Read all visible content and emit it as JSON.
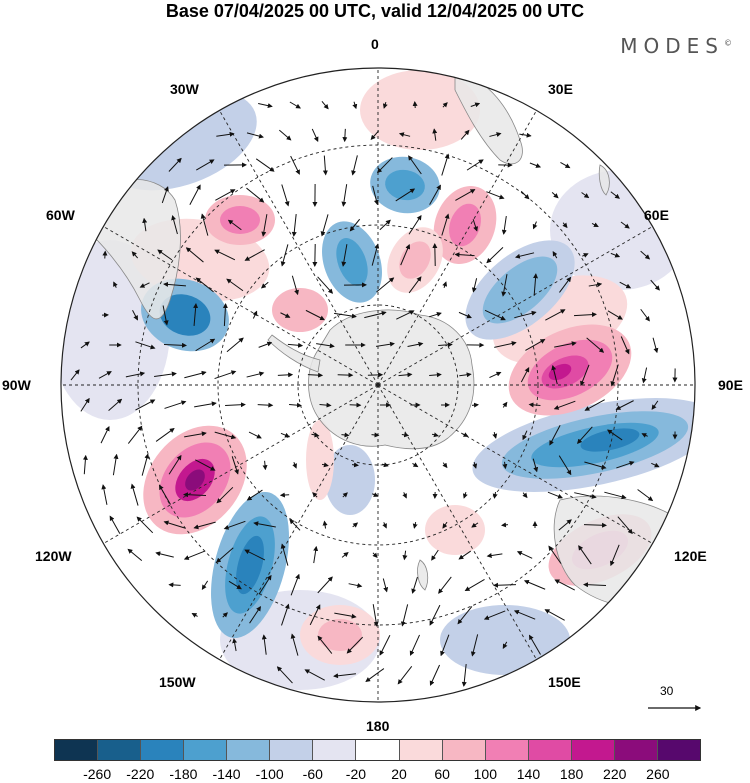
{
  "title": "Base 07/04/2025 00 UTC, valid 12/04/2025 00 UTC",
  "brand": "MODES",
  "brand_mark": "©",
  "longitude_labels": {
    "top": "0",
    "top_right": "30E",
    "right_upper": "60E",
    "right": "90E",
    "right_lower": "120E",
    "bottom_right": "150E",
    "bottom": "180",
    "bottom_left": "150W",
    "left_lower": "120W",
    "left": "90W",
    "left_upper": "60W",
    "top_left": "30W"
  },
  "reference_vector": {
    "label": "30",
    "icon": "arrow-right-icon"
  },
  "colorbar": {
    "colors": [
      "#0e3452",
      "#185f8c",
      "#2a83bc",
      "#4da0cf",
      "#86b9dc",
      "#c3d0e8",
      "#e4e4f1",
      "#ffffff",
      "#fadadb",
      "#f7b7c3",
      "#f17fb4",
      "#e04ba4",
      "#c3188f",
      "#8b0c7b",
      "#57086d"
    ],
    "ticks": [
      "-260",
      "-220",
      "-180",
      "-140",
      "-100",
      "-60",
      "-20",
      "20",
      "60",
      "100",
      "140",
      "180",
      "220",
      "260"
    ]
  },
  "map_colors": {
    "land": "#e8e8e8",
    "coast": "#888888",
    "grid": "#222222",
    "vector": "#111111"
  }
}
